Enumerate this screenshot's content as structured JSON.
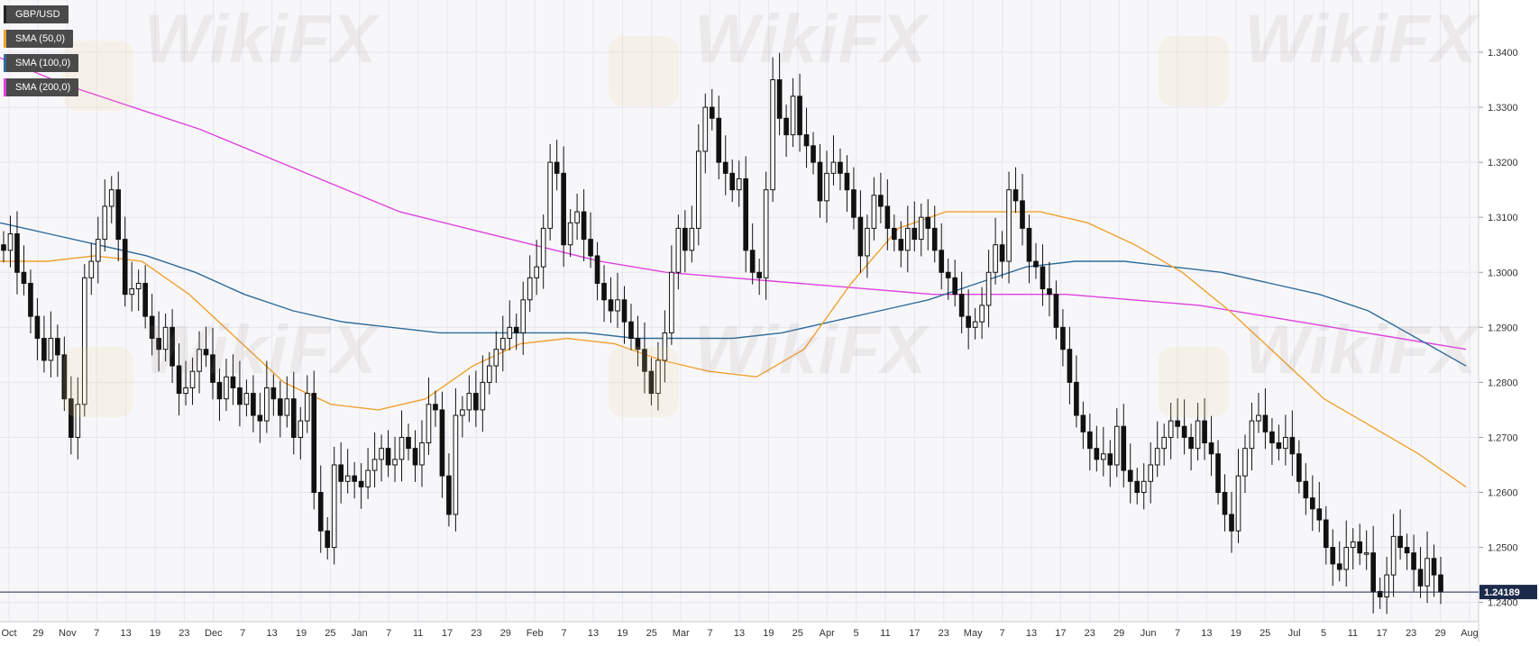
{
  "watermark_text": "WikiFX",
  "current_price_label": "1.24189",
  "legend": [
    {
      "label": "GBP/USD",
      "color": "#222222"
    },
    {
      "label": "SMA (50,0)",
      "color": "#f0a030"
    },
    {
      "label": "SMA (100,0)",
      "color": "#2f6b9a"
    },
    {
      "label": "SMA (200,0)",
      "color": "#e040e0"
    }
  ],
  "colors": {
    "bull_candle": "#ffffff",
    "bear_candle": "#111111",
    "sma50": "#f0a030",
    "sma100": "#2f6b9a",
    "sma200": "#e040e0",
    "grid": "#e6e6ee",
    "price_line": "#1c2a4a"
  },
  "chart_data": {
    "type": "candlestick",
    "title": "GBP/USD",
    "ylim": [
      1.2365,
      1.3495
    ],
    "grid": true,
    "legend_position": "top-left",
    "y_ticks": [
      1.24,
      1.25,
      1.26,
      1.27,
      1.28,
      1.29,
      1.3,
      1.31,
      1.32,
      1.33,
      1.34
    ],
    "y_tick_labels": [
      "1.2400",
      "1.2500",
      "1.2600",
      "1.2700",
      "1.2800",
      "1.2900",
      "1.3000",
      "1.3100",
      "1.3200",
      "1.3300",
      "1.3400"
    ],
    "x_tick_labels": [
      "Oct",
      "29",
      "Nov",
      "7",
      "13",
      "19",
      "23",
      "Dec",
      "7",
      "13",
      "19",
      "25",
      "Jan",
      "7",
      "11",
      "17",
      "23",
      "29",
      "Feb",
      "7",
      "13",
      "19",
      "25",
      "Mar",
      "7",
      "13",
      "19",
      "25",
      "Apr",
      "5",
      "11",
      "17",
      "23",
      "May",
      "7",
      "13",
      "17",
      "23",
      "29",
      "Jun",
      "7",
      "13",
      "19",
      "25",
      "Jul",
      "5",
      "11",
      "17",
      "23",
      "29",
      "Aug"
    ],
    "current_price": 1.24189,
    "series": [
      {
        "name": "GBP/USD",
        "kind": "ohlc",
        "close": [
          1.304,
          1.307,
          1.3,
          1.298,
          1.292,
          1.288,
          1.284,
          1.288,
          1.285,
          1.277,
          1.27,
          1.276,
          1.299,
          1.302,
          1.306,
          1.312,
          1.315,
          1.306,
          1.296,
          1.297,
          1.298,
          1.292,
          1.288,
          1.286,
          1.29,
          1.283,
          1.278,
          1.279,
          1.282,
          1.286,
          1.285,
          1.28,
          1.277,
          1.281,
          1.279,
          1.276,
          1.278,
          1.274,
          1.273,
          1.279,
          1.277,
          1.274,
          1.277,
          1.27,
          1.273,
          1.278,
          1.26,
          1.253,
          1.25,
          1.265,
          1.262,
          1.263,
          1.262,
          1.261,
          1.264,
          1.266,
          1.268,
          1.265,
          1.266,
          1.27,
          1.268,
          1.265,
          1.269,
          1.276,
          1.275,
          1.263,
          1.256,
          1.274,
          1.275,
          1.278,
          1.275,
          1.28,
          1.283,
          1.286,
          1.288,
          1.29,
          1.289,
          1.295,
          1.299,
          1.301,
          1.308,
          1.32,
          1.318,
          1.305,
          1.309,
          1.311,
          1.306,
          1.303,
          1.298,
          1.295,
          1.293,
          1.295,
          1.291,
          1.288,
          1.286,
          1.282,
          1.278,
          1.284,
          1.289,
          1.3,
          1.308,
          1.304,
          1.308,
          1.322,
          1.33,
          1.328,
          1.32,
          1.318,
          1.315,
          1.317,
          1.304,
          1.3,
          1.299,
          1.315,
          1.335,
          1.328,
          1.325,
          1.332,
          1.325,
          1.323,
          1.32,
          1.313,
          1.318,
          1.32,
          1.318,
          1.315,
          1.31,
          1.303,
          1.308,
          1.314,
          1.312,
          1.308,
          1.306,
          1.304,
          1.308,
          1.306,
          1.31,
          1.308,
          1.304,
          1.3,
          1.299,
          1.296,
          1.292,
          1.29,
          1.291,
          1.294,
          1.3,
          1.305,
          1.302,
          1.315,
          1.313,
          1.308,
          1.302,
          1.301,
          1.297,
          1.296,
          1.29,
          1.286,
          1.28,
          1.274,
          1.271,
          1.268,
          1.266,
          1.267,
          1.265,
          1.272,
          1.264,
          1.262,
          1.26,
          1.262,
          1.265,
          1.268,
          1.27,
          1.273,
          1.272,
          1.27,
          1.268,
          1.273,
          1.269,
          1.267,
          1.26,
          1.256,
          1.253,
          1.263,
          1.268,
          1.273,
          1.274,
          1.271,
          1.269,
          1.268,
          1.27,
          1.267,
          1.262,
          1.259,
          1.257,
          1.255,
          1.25,
          1.247,
          1.246,
          1.25,
          1.251,
          1.249,
          1.249,
          1.242,
          1.241,
          1.245,
          1.252,
          1.25,
          1.249,
          1.246,
          1.243,
          1.248,
          1.245,
          1.2419
        ]
      },
      {
        "name": "SMA (50,0)",
        "kind": "line",
        "y": [
          1.302,
          1.302,
          1.303,
          1.302,
          1.296,
          1.288,
          1.28,
          1.276,
          1.275,
          1.277,
          1.283,
          1.287,
          1.288,
          1.287,
          1.284,
          1.282,
          1.281,
          1.286,
          1.298,
          1.308,
          1.311,
          1.311,
          1.311,
          1.309,
          1.305,
          1.3,
          1.293,
          1.285,
          1.277,
          1.272,
          1.267,
          1.261
        ]
      },
      {
        "name": "SMA (100,0)",
        "kind": "line",
        "y": [
          1.309,
          1.307,
          1.305,
          1.303,
          1.3,
          1.296,
          1.293,
          1.291,
          1.29,
          1.289,
          1.289,
          1.289,
          1.289,
          1.288,
          1.288,
          1.288,
          1.289,
          1.291,
          1.293,
          1.295,
          1.298,
          1.301,
          1.302,
          1.302,
          1.301,
          1.3,
          1.298,
          1.296,
          1.293,
          1.288,
          1.283
        ]
      },
      {
        "name": "SMA (200,0)",
        "kind": "line",
        "y": [
          1.339,
          1.334,
          1.33,
          1.326,
          1.321,
          1.316,
          1.311,
          1.308,
          1.305,
          1.302,
          1.3,
          1.299,
          1.298,
          1.297,
          1.296,
          1.296,
          1.296,
          1.295,
          1.294,
          1.292,
          1.29,
          1.288,
          1.286
        ]
      }
    ]
  }
}
